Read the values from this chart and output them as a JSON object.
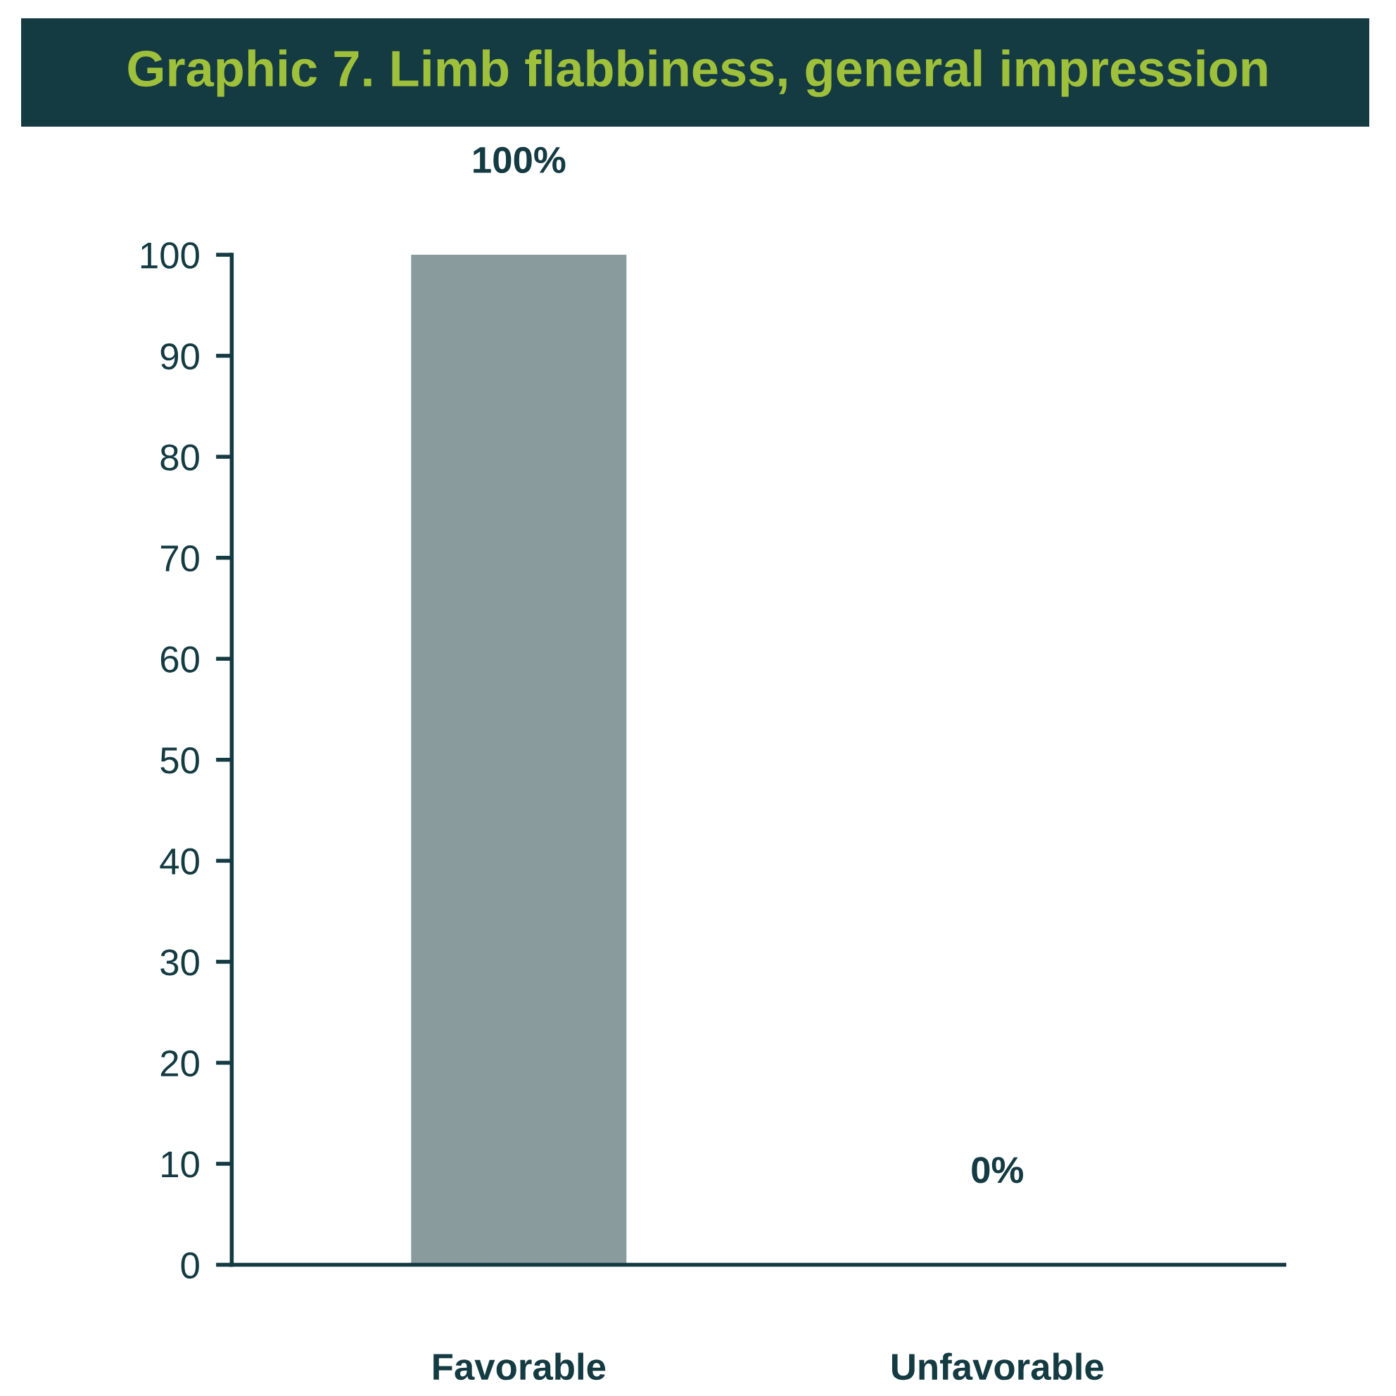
{
  "chart_data": {
    "type": "bar",
    "title": "Graphic 7. Limb flabbiness, general impression",
    "categories": [
      "Favorable",
      "Unfavorable"
    ],
    "values": [
      100,
      0
    ],
    "value_labels": [
      "100%",
      "0%"
    ],
    "color": "#8a9b9e",
    "ylim": [
      0,
      100
    ],
    "yticks": [
      0,
      10,
      20,
      30,
      40,
      50,
      60,
      70,
      80,
      90,
      100
    ],
    "grid": false,
    "legend": false
  }
}
